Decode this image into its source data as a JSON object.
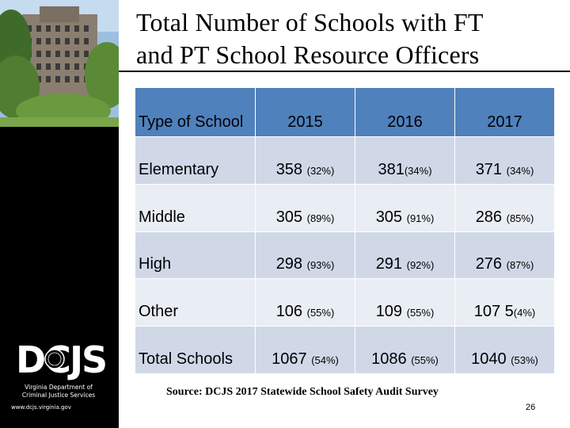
{
  "title": {
    "line1": "Total Number of Schools with FT",
    "line2": "and PT School Resource Officers"
  },
  "sidebar": {
    "logo_text": "DCJS",
    "agency_line1": "Virginia Department of",
    "agency_line2": "Criminal Justice Services",
    "website": "www.dcjs.virginia.gov"
  },
  "table": {
    "headers": [
      "Type of School",
      "2015",
      "2016",
      "2017"
    ],
    "rows": [
      {
        "label": "Elementary",
        "cells": [
          {
            "num": "358",
            "pct": "(32%)"
          },
          {
            "num": "381",
            "pct": "(34%)"
          },
          {
            "num": "371",
            "pct": "(34%)"
          }
        ]
      },
      {
        "label": "Middle",
        "cells": [
          {
            "num": "305",
            "pct": "(89%)"
          },
          {
            "num": "305",
            "pct": "(91%)"
          },
          {
            "num": "286",
            "pct": "(85%)"
          }
        ]
      },
      {
        "label": "High",
        "cells": [
          {
            "num": "298",
            "pct": "(93%)"
          },
          {
            "num": "291",
            "pct": "(92%)"
          },
          {
            "num": "276",
            "pct": "(87%)"
          }
        ]
      },
      {
        "label": "Other",
        "cells": [
          {
            "num": "106",
            "pct": "(55%)"
          },
          {
            "num": "109",
            "pct": "(55%)"
          },
          {
            "num": "107 5",
            "pct": "(4%)"
          }
        ]
      },
      {
        "label": "Total Schools",
        "cells": [
          {
            "num": "1067",
            "pct": "(54%)"
          },
          {
            "num": "1086",
            "pct": "(55%)"
          },
          {
            "num": "1040",
            "pct": "(53%)"
          }
        ]
      }
    ]
  },
  "source": "Source: DCJS 2017 Statewide School Safety Audit Survey",
  "page_number": "26",
  "colors": {
    "header_bg": "#4f81bd",
    "row_light": "#d0d8e8",
    "row_lighter": "#e9edf4",
    "sidebar_bg": "#000000"
  }
}
